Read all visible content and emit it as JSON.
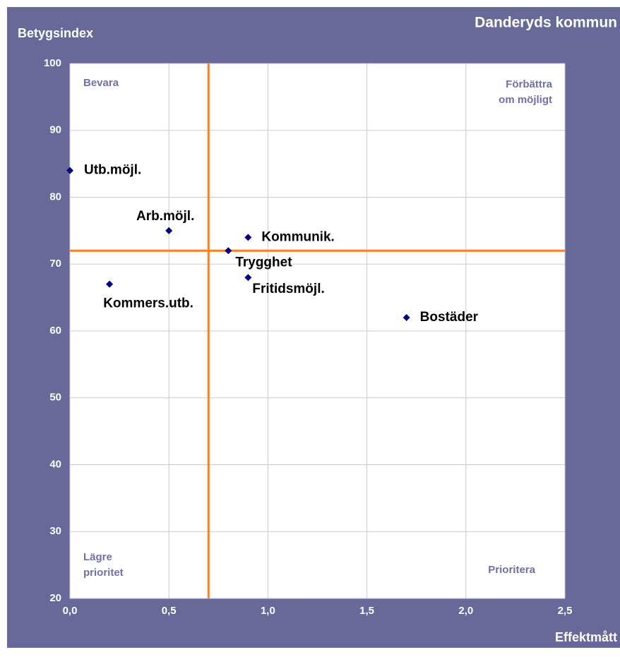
{
  "chart_data": {
    "type": "scatter",
    "title": "Danderyds kommun",
    "y_label": "Betygsindex",
    "x_label": "Effektmått",
    "labels": [
      "Utb.möjl.",
      "Arb.möjl.",
      "Kommunik.",
      "Trygghet",
      "Fritidsmöjl.",
      "Kommers.utb.",
      "Bostäder"
    ],
    "x": [
      0,
      0.5,
      0.9,
      0.8,
      0.9,
      0.2,
      1.7
    ],
    "y": [
      84,
      75,
      74,
      72,
      68,
      67,
      62
    ],
    "color": "#000080",
    "reference_lines": {
      "x": 0.7,
      "y": 72,
      "color": "#ff7f1e"
    },
    "quadrant_labels": {
      "top_left": [
        "Bevara"
      ],
      "top_right": [
        "Förbättra",
        "om möjligt"
      ],
      "bottom_left": [
        "Lägre",
        "prioritet"
      ],
      "bottom_right": [
        "Prioritera"
      ]
    },
    "xlim": [
      0,
      2.5
    ],
    "ylim": [
      20,
      100
    ],
    "xticks": [
      {
        "value": 0,
        "label": "0,0"
      },
      {
        "value": 0.5,
        "label": "0,5"
      },
      {
        "value": 1,
        "label": "1,0"
      },
      {
        "value": 1.5,
        "label": "1,5"
      },
      {
        "value": 2,
        "label": "2,0"
      },
      {
        "value": 2.5,
        "label": "2,5"
      }
    ],
    "yticks": [
      20,
      30,
      40,
      50,
      60,
      70,
      80,
      90,
      100
    ],
    "grid": true
  }
}
